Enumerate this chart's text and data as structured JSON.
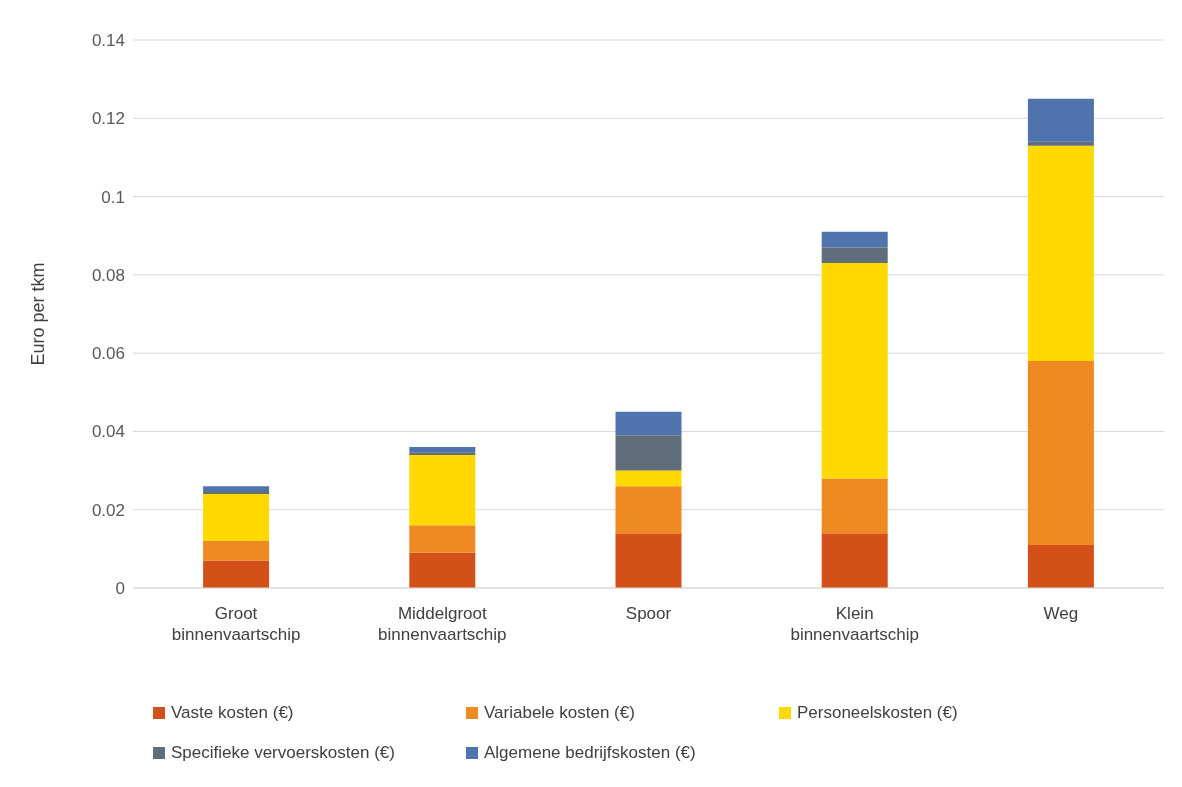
{
  "chart_data": {
    "type": "bar",
    "stacked": true,
    "ylabel": "Euro per tkm",
    "categories": [
      "Groot binnenvaartschip",
      "Middelgroot binnenvaartschip",
      "Spoor",
      "Klein binnenvaartschip",
      "Weg"
    ],
    "series": [
      {
        "name": "Vaste kosten (€)",
        "color": "#d35019",
        "values": [
          0.007,
          0.009,
          0.014,
          0.014,
          0.011
        ]
      },
      {
        "name": "Variabele kosten (€)",
        "color": "#ef8a22",
        "values": [
          0.005,
          0.007,
          0.012,
          0.014,
          0.047
        ]
      },
      {
        "name": "Personeelskosten (€)",
        "color": "#ffd900",
        "values": [
          0.012,
          0.018,
          0.004,
          0.055,
          0.055
        ]
      },
      {
        "name": "Specifieke vervoerskosten (€)",
        "color": "#5f6e7a",
        "values": [
          0.0008,
          0.0007,
          0.009,
          0.004,
          0.001
        ]
      },
      {
        "name": "Algemene bedrijfskosten (€)",
        "color": "#4e73ad",
        "values": [
          0.0012,
          0.0013,
          0.006,
          0.004,
          0.011
        ]
      }
    ],
    "ylim": [
      0,
      0.14
    ],
    "yticks": [
      0,
      0.02,
      0.04,
      0.06,
      0.08,
      0.1,
      0.12,
      0.14
    ],
    "grid": "y",
    "legend": "bottom"
  }
}
